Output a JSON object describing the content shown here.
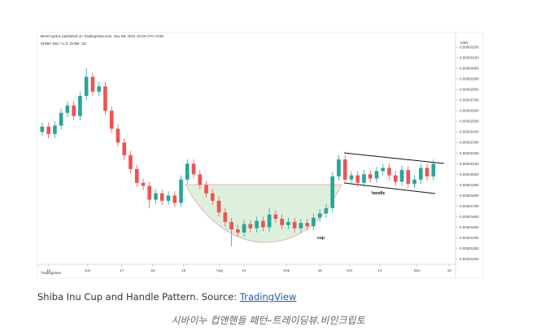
{
  "chart_data": {
    "type": "candlestick",
    "header": "BeInCrypto1 published on TradingView.com, Nov 08, 2024 18:29 UTC+0:00",
    "symbol": "SHIBA INU / U.S. Dollar, 1D",
    "unit": "USD",
    "annotations": {
      "cup": "cup",
      "handle": "handle"
    },
    "logo": "TradingView",
    "up_color": "#26a69a",
    "down_color": "#ef5350",
    "open": [
      2.4e-05,
      2.45e-05,
      2.38e-05,
      2.46e-05,
      2.58e-05,
      2.65e-05,
      2.55e-05,
      2.74e-05,
      2.92e-05,
      2.78e-05,
      2.83e-05,
      2.6e-05,
      2.43e-05,
      2.3e-05,
      2.18e-05,
      2.05e-05,
      1.92e-05,
      1.89e-05,
      1.76e-05,
      1.82e-05,
      1.75e-05,
      1.8e-05,
      1.73e-05,
      1.95e-05,
      2.1e-05,
      2e-05,
      1.9e-05,
      1.82e-05,
      1.75e-05,
      1.64e-05,
      1.55e-05,
      1.48e-05,
      1.45e-05,
      1.53e-05,
      1.49e-05,
      1.56e-05,
      1.5e-05,
      1.62e-05,
      1.58e-05,
      1.52e-05,
      1.55e-05,
      1.49e-05,
      1.54e-05,
      1.51e-05,
      1.59e-05,
      1.63e-05,
      1.68e-05,
      1.98e-05,
      2.14e-05,
      1.95e-05,
      1.99e-05,
      1.92e-05,
      2e-05,
      1.96e-05,
      2.03e-05,
      2.06e-05,
      1.99e-05,
      1.93e-05,
      2.04e-05,
      1.91e-05,
      1.95e-05,
      2.06e-05,
      1.98e-05
    ],
    "high": [
      2.49e-05,
      2.49e-05,
      2.5e-05,
      2.62e-05,
      2.69e-05,
      2.69e-05,
      2.78e-05,
      3e-05,
      2.96e-05,
      2.87e-05,
      2.87e-05,
      2.64e-05,
      2.47e-05,
      2.34e-05,
      2.22e-05,
      2.09e-05,
      1.96e-05,
      1.93e-05,
      1.86e-05,
      1.86e-05,
      1.84e-05,
      1.84e-05,
      1.99e-05,
      2.14e-05,
      2.14e-05,
      2.04e-05,
      1.94e-05,
      1.86e-05,
      1.79e-05,
      1.68e-05,
      1.59e-05,
      1.52e-05,
      1.57e-05,
      1.57e-05,
      1.6e-05,
      1.6e-05,
      1.68e-05,
      1.66e-05,
      1.62e-05,
      1.59e-05,
      1.59e-05,
      1.58e-05,
      1.58e-05,
      1.63e-05,
      1.67e-05,
      1.72e-05,
      2.02e-05,
      2.18e-05,
      2.18e-05,
      2.03e-05,
      2.03e-05,
      2.04e-05,
      2.04e-05,
      2.07e-05,
      2.1e-05,
      2.1e-05,
      2.03e-05,
      2.08e-05,
      2.08e-05,
      1.99e-05,
      2.1e-05,
      2.1e-05,
      2.14e-05
    ],
    "low": [
      2.36e-05,
      2.34e-05,
      2.34e-05,
      2.42e-05,
      2.54e-05,
      2.51e-05,
      2.51e-05,
      2.7e-05,
      2.74e-05,
      2.74e-05,
      2.56e-05,
      2.39e-05,
      2.26e-05,
      2.14e-05,
      2.01e-05,
      1.88e-05,
      1.85e-05,
      1.68e-05,
      1.72e-05,
      1.71e-05,
      1.71e-05,
      1.69e-05,
      1.69e-05,
      1.91e-05,
      1.96e-05,
      1.86e-05,
      1.78e-05,
      1.71e-05,
      1.6e-05,
      1.51e-05,
      1.32e-05,
      1.41e-05,
      1.41e-05,
      1.45e-05,
      1.45e-05,
      1.46e-05,
      1.46e-05,
      1.54e-05,
      1.48e-05,
      1.48e-05,
      1.45e-05,
      1.45e-05,
      1.47e-05,
      1.47e-05,
      1.55e-05,
      1.59e-05,
      1.64e-05,
      1.94e-05,
      1.91e-05,
      1.91e-05,
      1.88e-05,
      1.88e-05,
      1.92e-05,
      1.92e-05,
      1.99e-05,
      1.95e-05,
      1.89e-05,
      1.89e-05,
      1.87e-05,
      1.87e-05,
      1.91e-05,
      1.94e-05,
      1.94e-05
    ],
    "close": [
      2.45e-05,
      2.38e-05,
      2.46e-05,
      2.58e-05,
      2.65e-05,
      2.55e-05,
      2.74e-05,
      2.92e-05,
      2.78e-05,
      2.83e-05,
      2.6e-05,
      2.43e-05,
      2.3e-05,
      2.18e-05,
      2.05e-05,
      1.92e-05,
      1.89e-05,
      1.76e-05,
      1.82e-05,
      1.75e-05,
      1.8e-05,
      1.73e-05,
      1.95e-05,
      2.1e-05,
      2e-05,
      1.9e-05,
      1.82e-05,
      1.75e-05,
      1.64e-05,
      1.55e-05,
      1.48e-05,
      1.45e-05,
      1.53e-05,
      1.49e-05,
      1.56e-05,
      1.5e-05,
      1.62e-05,
      1.58e-05,
      1.52e-05,
      1.55e-05,
      1.49e-05,
      1.54e-05,
      1.51e-05,
      1.59e-05,
      1.63e-05,
      1.68e-05,
      1.98e-05,
      2.14e-05,
      1.95e-05,
      1.99e-05,
      1.92e-05,
      2e-05,
      1.96e-05,
      2.03e-05,
      2.06e-05,
      1.99e-05,
      1.93e-05,
      2.04e-05,
      1.91e-05,
      1.95e-05,
      2.06e-05,
      1.98e-05,
      2.1e-05
    ],
    "xlim": [
      0,
      66
    ],
    "xticks": [
      {
        "value": 1.5,
        "label": "13"
      },
      {
        "value": 7.7,
        "label": "Jun"
      },
      {
        "value": 13.1,
        "label": "17"
      },
      {
        "value": 18,
        "label": "Jul"
      },
      {
        "value": 22.9,
        "label": "15"
      },
      {
        "value": 28.6,
        "label": "Aug"
      },
      {
        "value": 32.5,
        "label": "12"
      },
      {
        "value": 39.2,
        "label": "Sep"
      },
      {
        "value": 44.5,
        "label": "16"
      },
      {
        "value": 49.2,
        "label": "Oct"
      },
      {
        "value": 54,
        "label": "14"
      },
      {
        "value": 59.9,
        "label": "Nov"
      },
      {
        "value": 65,
        "label": "18"
      }
    ],
    "ylim": [
      1.15e-05,
      3.3e-05
    ],
    "yticks": [
      {
        "value": 1.2e-05,
        "label": "0.00001200"
      },
      {
        "value": 1.3e-05,
        "label": "0.00001300"
      },
      {
        "value": 1.4e-05,
        "label": "0.00001400"
      },
      {
        "value": 1.5e-05,
        "label": "0.00001500"
      },
      {
        "value": 1.6e-05,
        "label": "0.00001600"
      },
      {
        "value": 1.7e-05,
        "label": "0.00001700"
      },
      {
        "value": 1.8e-05,
        "label": "0.00001800"
      },
      {
        "value": 1.9e-05,
        "label": "0.00001900"
      },
      {
        "value": 2e-05,
        "label": "0.00002000"
      },
      {
        "value": 2.1e-05,
        "label": "0.00002100"
      },
      {
        "value": 2.2e-05,
        "label": "0.00002200"
      },
      {
        "value": 2.3e-05,
        "label": "0.00002300"
      },
      {
        "value": 2.4e-05,
        "label": "0.00002400"
      },
      {
        "value": 2.5e-05,
        "label": "0.00002500"
      },
      {
        "value": 2.6e-05,
        "label": "0.00002600"
      },
      {
        "value": 2.7e-05,
        "label": "0.00002700"
      },
      {
        "value": 2.8e-05,
        "label": "0.00002800"
      },
      {
        "value": 2.9e-05,
        "label": "0.00002900"
      },
      {
        "value": 3e-05,
        "label": "0.00003000"
      },
      {
        "value": 3.1e-05,
        "label": "0.00003100"
      },
      {
        "value": 3.2e-05,
        "label": "0.00003200"
      }
    ]
  },
  "caption": {
    "text": "Shiba Inu Cup and Handle Pattern. Source: ",
    "link": "TradingView"
  },
  "subcaption": "시바이누 컵앤핸들 패턴–트레이딩뷰.비인크립토"
}
